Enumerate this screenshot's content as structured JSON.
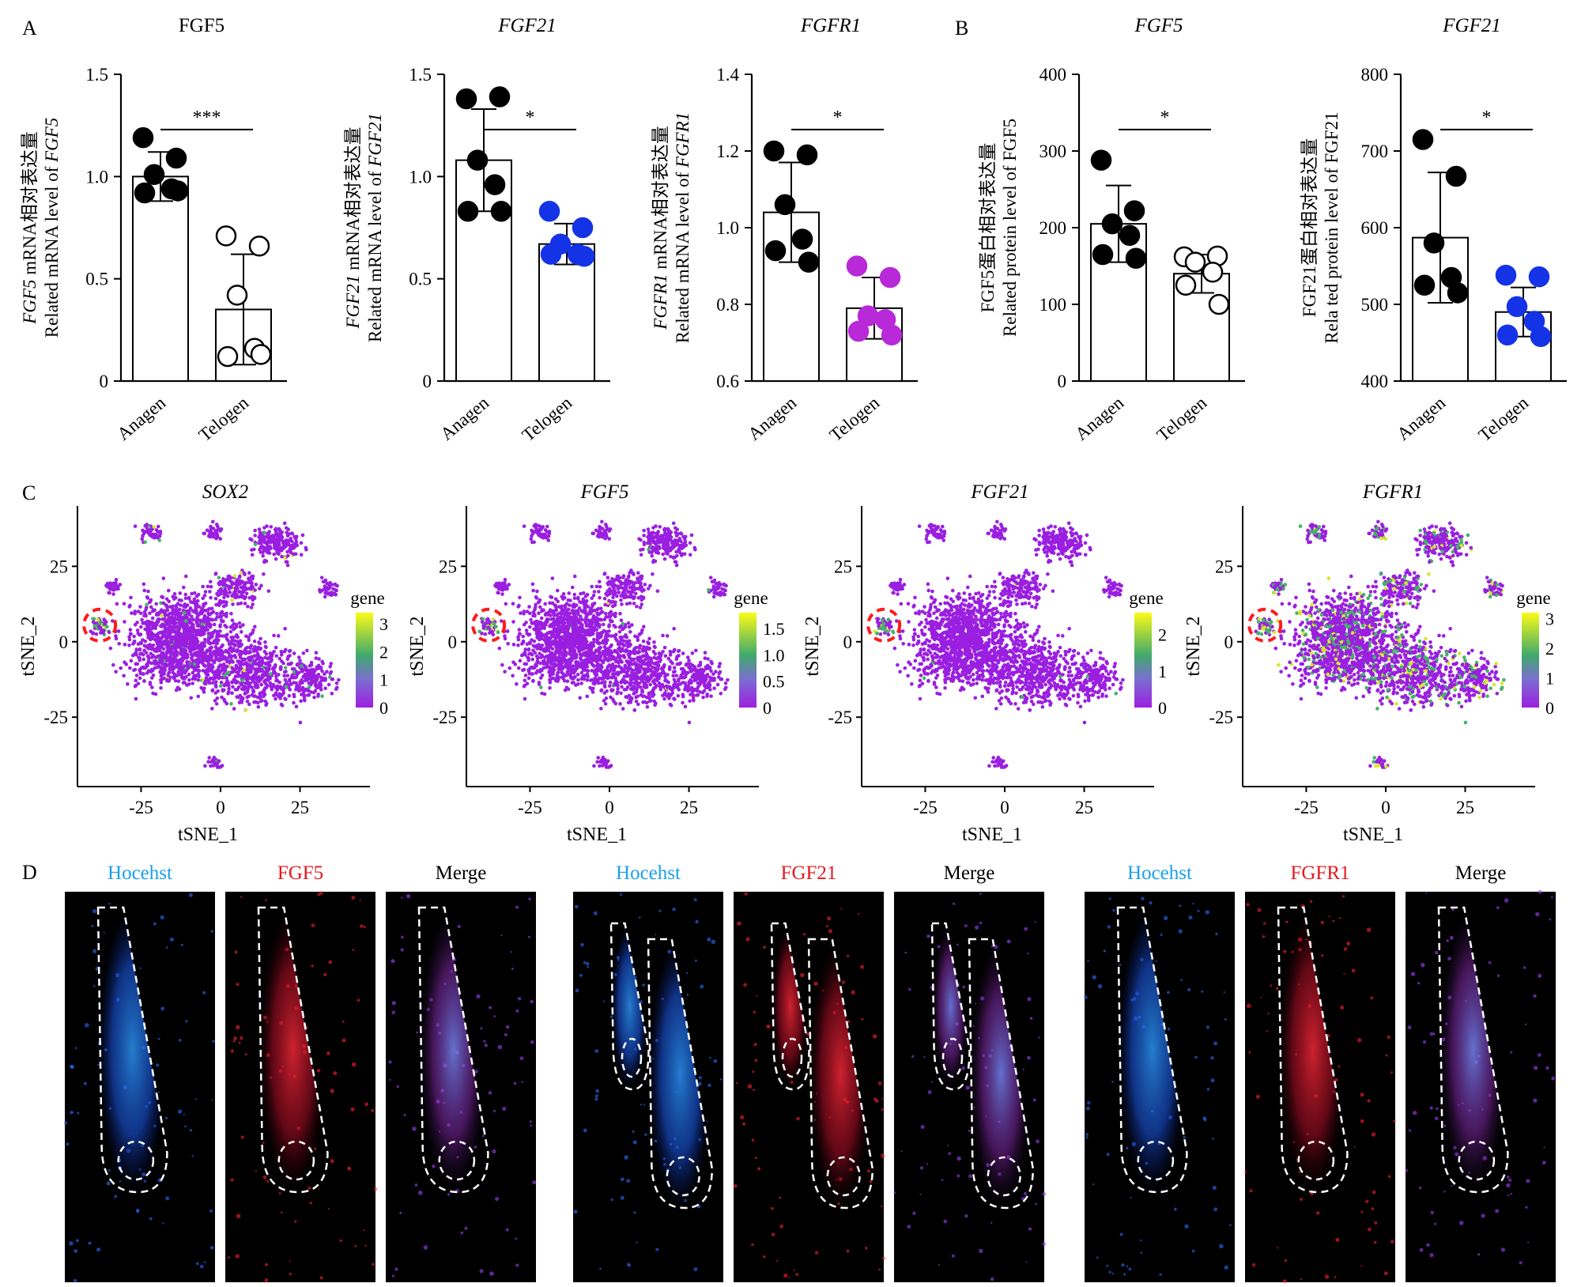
{
  "figure": {
    "panel_labels": {
      "A": "A",
      "B": "B",
      "C": "C",
      "D": "D"
    },
    "x_categories": [
      "Anagen",
      "Telogen"
    ]
  },
  "chart_data": [
    {
      "panel": "A",
      "type": "bar",
      "title": "FGF5",
      "title_italic": false,
      "ylabel_line1": "FGF5 mRNA相对表达量",
      "ylabel_italic_prefix": "FGF5",
      "ylabel_line2": "Related mRNA level of FGF5",
      "ylabel_italic_suffix": "FGF5",
      "categories": [
        "Anagen",
        "Telogen"
      ],
      "values": [
        1.0,
        0.35
      ],
      "errors": [
        0.12,
        0.27
      ],
      "ylim": [
        0,
        1.5
      ],
      "yticks": [
        "0",
        "0.5",
        "1.0",
        "1.5"
      ],
      "points": [
        [
          1.19,
          1.09,
          1.01,
          0.94,
          0.92,
          0.93
        ],
        [
          0.71,
          0.66,
          0.42,
          0.16,
          0.12,
          0.13
        ]
      ],
      "point_colors": [
        "#000000",
        "#ffffff"
      ],
      "significance": "***"
    },
    {
      "panel": "A",
      "type": "bar",
      "title": "FGF21",
      "title_italic": true,
      "ylabel_line1": "FGF21 mRNA相对表达量",
      "ylabel_italic_prefix": "FGF21",
      "ylabel_line2": "Related mRNA level of FGF21",
      "ylabel_italic_suffix": "FGF21",
      "categories": [
        "Anagen",
        "Telogen"
      ],
      "values": [
        1.08,
        0.67
      ],
      "errors": [
        0.25,
        0.1
      ],
      "ylim": [
        0,
        1.5
      ],
      "yticks": [
        "0",
        "0.5",
        "1.0",
        "1.5"
      ],
      "points": [
        [
          1.38,
          1.39,
          1.08,
          0.96,
          0.83,
          0.83
        ],
        [
          0.83,
          0.75,
          0.67,
          0.62,
          0.62,
          0.61
        ]
      ],
      "point_colors": [
        "#000000",
        "#1533e6"
      ],
      "significance": "*"
    },
    {
      "panel": "A",
      "type": "bar",
      "title": "FGFR1",
      "title_italic": true,
      "ylabel_line1": "FGFR1 mRNA相对表达量",
      "ylabel_italic_prefix": "FGFR1",
      "ylabel_line2": "Related mRNA level of FGFR1",
      "ylabel_italic_suffix": "FGFR1",
      "categories": [
        "Anagen",
        "Telogen"
      ],
      "values": [
        1.04,
        0.79
      ],
      "errors": [
        0.13,
        0.08
      ],
      "ylim": [
        0.6,
        1.4
      ],
      "yticks": [
        "0.6",
        "0.8",
        "1.0",
        "1.2",
        "1.4"
      ],
      "points": [
        [
          1.2,
          1.19,
          1.06,
          0.97,
          0.94,
          0.91
        ],
        [
          0.9,
          0.87,
          0.77,
          0.76,
          0.73,
          0.72
        ]
      ],
      "point_colors": [
        "#000000",
        "#b829d8"
      ],
      "significance": "*"
    },
    {
      "panel": "B",
      "type": "bar",
      "title": "FGF5",
      "title_italic": true,
      "ylabel_line1": "FGF5蛋白相对表达量",
      "ylabel_italic_prefix": "",
      "ylabel_line2": "Related protein level of FGF5",
      "ylabel_italic_suffix": "",
      "categories": [
        "Anagen",
        "Telogen"
      ],
      "values": [
        205,
        140
      ],
      "errors": [
        50,
        25
      ],
      "ylim": [
        0,
        400
      ],
      "yticks": [
        "0",
        "100",
        "200",
        "300",
        "400"
      ],
      "points": [
        [
          288,
          222,
          205,
          190,
          165,
          160
        ],
        [
          162,
          163,
          155,
          142,
          125,
          100
        ]
      ],
      "point_colors": [
        "#000000",
        "#ffffff"
      ],
      "significance": "*"
    },
    {
      "panel": "B",
      "type": "bar",
      "title": "FGF21",
      "title_italic": true,
      "ylabel_line1": "FGF21蛋白相对表达量",
      "ylabel_italic_prefix": "",
      "ylabel_line2": "Rela ted protein level of FGF21",
      "ylabel_italic_suffix": "",
      "categories": [
        "Anagen",
        "Telogen"
      ],
      "values": [
        587,
        490
      ],
      "errors": [
        85,
        32
      ],
      "ylim": [
        400,
        800
      ],
      "yticks": [
        "400",
        "500",
        "600",
        "700",
        "800"
      ],
      "points": [
        [
          715,
          667,
          580,
          535,
          525,
          515
        ],
        [
          538,
          536,
          497,
          478,
          460,
          458
        ]
      ],
      "point_colors": [
        "#000000",
        "#1533e6"
      ],
      "significance": "*"
    },
    {
      "panel": "C",
      "type": "scatter",
      "title": "SOX2",
      "xlabel": "tSNE_1",
      "ylabel": "tSNE_2",
      "xticks": [
        "-25",
        "0",
        "25"
      ],
      "yticks": [
        "-25",
        "0",
        "25"
      ],
      "xlim": [
        -45,
        47
      ],
      "ylim": [
        -48,
        45
      ],
      "legend_title": "gene",
      "legend_ticks": [
        "0",
        "1",
        "2",
        "3"
      ],
      "legend_max": 3.4,
      "green_fraction": 0.03
    },
    {
      "panel": "C",
      "type": "scatter",
      "title": "FGF5",
      "xlabel": "tSNE_1",
      "ylabel": "tSNE_2",
      "xticks": [
        "-25",
        "0",
        "25"
      ],
      "yticks": [
        "-25",
        "0",
        "25"
      ],
      "xlim": [
        -45,
        47
      ],
      "ylim": [
        -48,
        45
      ],
      "legend_title": "gene",
      "legend_ticks": [
        "0",
        "0.5",
        "1.0",
        "1.5"
      ],
      "legend_max": 1.8,
      "green_fraction": 0.005
    },
    {
      "panel": "C",
      "type": "scatter",
      "title": "FGF21",
      "xlabel": "tSNE_1",
      "ylabel": "tSNE_2",
      "xticks": [
        "-25",
        "0",
        "25"
      ],
      "yticks": [
        "-25",
        "0",
        "25"
      ],
      "xlim": [
        -45,
        47
      ],
      "ylim": [
        -48,
        45
      ],
      "legend_title": "gene",
      "legend_ticks": [
        "0",
        "1",
        "2"
      ],
      "legend_max": 2.6,
      "green_fraction": 0.005
    },
    {
      "panel": "C",
      "type": "scatter",
      "title": "FGFR1",
      "xlabel": "tSNE_1",
      "ylabel": "tSNE_2",
      "xticks": [
        "-25",
        "0",
        "25"
      ],
      "yticks": [
        "-25",
        "0",
        "25"
      ],
      "xlim": [
        -45,
        47
      ],
      "ylim": [
        -48,
        45
      ],
      "legend_title": "gene",
      "legend_ticks": [
        "0",
        "1",
        "2",
        "3"
      ],
      "legend_max": 3.2,
      "green_fraction": 0.22
    }
  ],
  "panel_d": {
    "groups": [
      {
        "labels": [
          "Hocehst",
          "FGF5",
          "Merge"
        ],
        "label_colors": [
          "#1aa0ee",
          "#e8171e",
          "#000000"
        ]
      },
      {
        "labels": [
          "Hocehst",
          "FGF21",
          "Merge"
        ],
        "label_colors": [
          "#1aa0ee",
          "#e8171e",
          "#000000"
        ]
      },
      {
        "labels": [
          "Hocehst",
          "FGFR1",
          "Merge"
        ],
        "label_colors": [
          "#1aa0ee",
          "#e8171e",
          "#000000"
        ]
      }
    ]
  }
}
